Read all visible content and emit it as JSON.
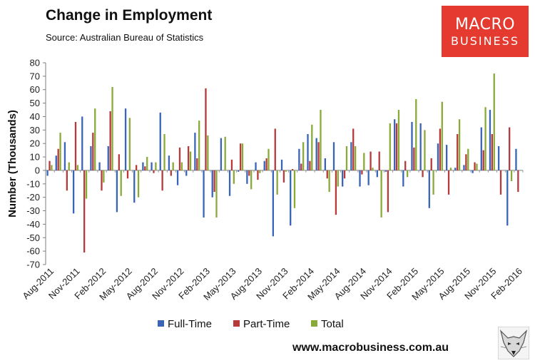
{
  "header": {
    "title": "Change in Employment",
    "subtitle": "Source: Australian Bureau of Statistics"
  },
  "logo": {
    "line1": "MACRO",
    "line2": "BUSINESS",
    "color": "#e53a2f"
  },
  "footer": {
    "url": "www.macrobusiness.com.au",
    "fox_icon": "fox-icon"
  },
  "chart_data": {
    "type": "bar",
    "ylabel": "Number (Thousands)",
    "ylim": [
      -70,
      80
    ],
    "yticks": [
      80,
      70,
      60,
      50,
      40,
      30,
      20,
      10,
      0,
      -10,
      -20,
      -30,
      -40,
      -50,
      -60,
      -70
    ],
    "grid": false,
    "legend_position": "bottom",
    "xtick_labels": [
      "Aug-2011",
      "Nov-2011",
      "Feb-2012",
      "May-2012",
      "Aug-2012",
      "Nov-2012",
      "Feb-2013",
      "May-2013",
      "Aug-2013",
      "Nov-2013",
      "Feb-2014",
      "May-2014",
      "Aug-2014",
      "Nov-2014",
      "Feb-2015",
      "May-2015",
      "Aug-2015",
      "Nov-2015",
      "Feb-2016"
    ],
    "xtick_every": 3,
    "categories": [
      "Aug-2011",
      "Sep-2011",
      "Oct-2011",
      "Nov-2011",
      "Dec-2011",
      "Jan-2012",
      "Feb-2012",
      "Mar-2012",
      "Apr-2012",
      "May-2012",
      "Jun-2012",
      "Jul-2012",
      "Aug-2012",
      "Sep-2012",
      "Oct-2012",
      "Nov-2012",
      "Dec-2012",
      "Jan-2013",
      "Feb-2013",
      "Mar-2013",
      "Apr-2013",
      "May-2013",
      "Jun-2013",
      "Jul-2013",
      "Aug-2013",
      "Sep-2013",
      "Oct-2013",
      "Nov-2013",
      "Dec-2013",
      "Jan-2014",
      "Feb-2014",
      "Mar-2014",
      "Apr-2014",
      "May-2014",
      "Jun-2014",
      "Jul-2014",
      "Aug-2014",
      "Sep-2014",
      "Oct-2014",
      "Nov-2014",
      "Dec-2014",
      "Jan-2015",
      "Feb-2015",
      "Mar-2015",
      "Apr-2015",
      "May-2015",
      "Jun-2015",
      "Jul-2015",
      "Aug-2015",
      "Sep-2015",
      "Oct-2015",
      "Nov-2015",
      "Dec-2015",
      "Jan-2016",
      "Feb-2016"
    ],
    "series": [
      {
        "name": "Full-Time",
        "color": "#3a64b8",
        "values": [
          -4,
          11,
          21,
          -32,
          40,
          18,
          6,
          18,
          -31,
          46,
          -24,
          6,
          6,
          43,
          11,
          -11,
          -4,
          28,
          -35,
          -20,
          24,
          -19,
          -1,
          -10,
          6,
          7,
          -49,
          8,
          -41,
          16,
          27,
          24,
          9,
          21,
          -12,
          21,
          -12,
          -11,
          -5,
          -1,
          38,
          -12,
          36,
          35,
          -28,
          20,
          19,
          2,
          4,
          -2,
          32,
          45,
          18,
          -41,
          16
        ]
      },
      {
        "name": "Part-Time",
        "color": "#b63a3a",
        "values": [
          7,
          16,
          -15,
          36,
          -61,
          28,
          -15,
          44,
          12,
          -6,
          4,
          3,
          -2,
          -15,
          -4,
          17,
          18,
          9,
          61,
          -16,
          0,
          8,
          20,
          -4,
          -7,
          9,
          31,
          -9,
          1,
          5,
          7,
          21,
          -6,
          -33,
          -6,
          31,
          -3,
          14,
          14,
          -31,
          35,
          7,
          17,
          -5,
          9,
          31,
          -18,
          27,
          12,
          6,
          15,
          27,
          -18,
          32,
          -16
        ]
      },
      {
        "name": "Total",
        "color": "#8aaa38",
        "values": [
          4,
          28,
          6,
          4,
          -21,
          46,
          -9,
          62,
          -19,
          39,
          -20,
          10,
          6,
          27,
          6,
          6,
          14,
          37,
          26,
          -35,
          25,
          -10,
          20,
          -14,
          -2,
          16,
          -18,
          -1,
          -28,
          21,
          34,
          45,
          -16,
          -12,
          18,
          18,
          13,
          2,
          -35,
          35,
          45,
          -5,
          53,
          30,
          -18,
          51,
          2,
          38,
          16,
          5,
          47,
          72,
          0,
          -8,
          0
        ]
      }
    ]
  }
}
